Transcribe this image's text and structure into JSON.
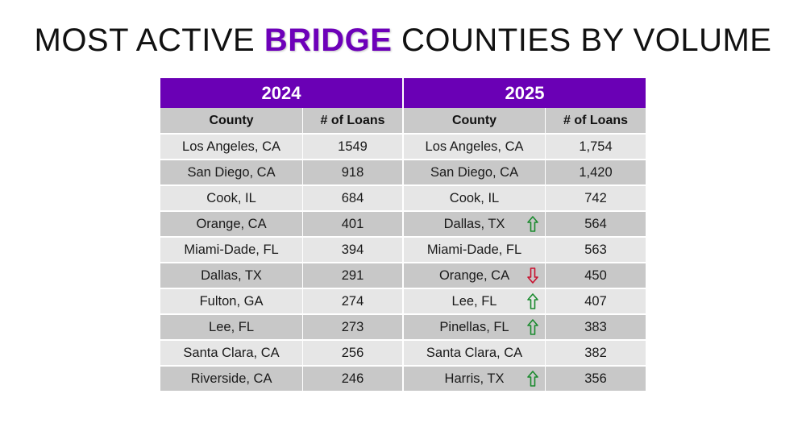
{
  "title": {
    "prefix": "MOST ACTIVE ",
    "highlight": "BRIDGE",
    "suffix": " COUNTIES BY VOLUME"
  },
  "table": {
    "year_left": "2024",
    "year_right": "2025",
    "col_county": "County",
    "col_loans": "# of Loans",
    "rows": [
      {
        "c24": "Los Angeles, CA",
        "n24": "1549",
        "c25": "Los Angeles, CA",
        "n25": "1,754",
        "trend": ""
      },
      {
        "c24": "San Diego, CA",
        "n24": "918",
        "c25": "San Diego, CA",
        "n25": "1,420",
        "trend": ""
      },
      {
        "c24": "Cook, IL",
        "n24": "684",
        "c25": "Cook, IL",
        "n25": "742",
        "trend": ""
      },
      {
        "c24": "Orange, CA",
        "n24": "401",
        "c25": "Dallas, TX",
        "n25": "564",
        "trend": "up"
      },
      {
        "c24": "Miami-Dade, FL",
        "n24": "394",
        "c25": "Miami-Dade, FL",
        "n25": "563",
        "trend": ""
      },
      {
        "c24": "Dallas, TX",
        "n24": "291",
        "c25": "Orange, CA",
        "n25": "450",
        "trend": "down"
      },
      {
        "c24": "Fulton, GA",
        "n24": "274",
        "c25": "Lee, FL",
        "n25": "407",
        "trend": "up"
      },
      {
        "c24": "Lee, FL",
        "n24": "273",
        "c25": "Pinellas, FL",
        "n25": "383",
        "trend": "up"
      },
      {
        "c24": "Santa Clara, CA",
        "n24": "256",
        "c25": "Santa Clara, CA",
        "n25": "382",
        "trend": ""
      },
      {
        "c24": "Riverside, CA",
        "n24": "246",
        "c25": "Harris, TX",
        "n25": "356",
        "trend": "up"
      }
    ]
  },
  "colors": {
    "header_purple": "#6a00b5",
    "title_highlight": "#6d00b9",
    "row_light": "#e6e6e6",
    "row_dark": "#c8c8c8",
    "arrow_up": "#1a8a2e",
    "arrow_down": "#c8102e"
  }
}
